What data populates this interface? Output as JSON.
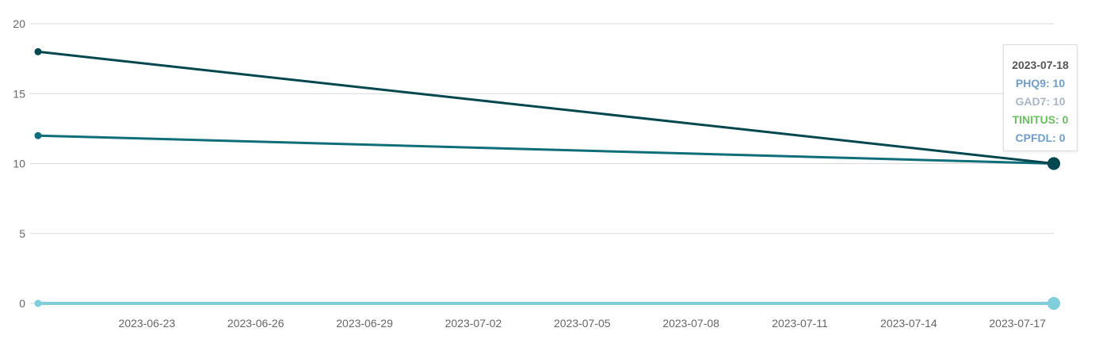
{
  "chart_data": {
    "type": "line",
    "title": "",
    "xlabel": "",
    "ylabel": "",
    "x_range": [
      "2023-06-20",
      "2023-07-18"
    ],
    "ylim": [
      0,
      20
    ],
    "yticks": [
      0,
      5,
      10,
      15,
      20
    ],
    "xticks": [
      "2023-06-23",
      "2023-06-26",
      "2023-06-29",
      "2023-07-02",
      "2023-07-05",
      "2023-07-08",
      "2023-07-11",
      "2023-07-14",
      "2023-07-17"
    ],
    "grid": "horizontal",
    "x": [
      "2023-06-20",
      "2023-07-18"
    ],
    "series": [
      {
        "name": "PHQ9",
        "color": "#0e6e7a",
        "values": [
          12,
          10
        ]
      },
      {
        "name": "GAD7",
        "color": "#00474f",
        "values": [
          18,
          10
        ]
      },
      {
        "name": "TINITUS",
        "color": "#80cedc",
        "values": [
          0,
          0
        ]
      },
      {
        "name": "CPFDL",
        "color": "#95d2df",
        "values": [
          0,
          0
        ]
      }
    ],
    "tooltip": {
      "date": "2023-07-18",
      "rows": [
        {
          "label": "PHQ9: 10",
          "color": "#6e9ec9"
        },
        {
          "label": "GAD7: 10",
          "color": "#a9b7c4"
        },
        {
          "label": "TINITUS: 0",
          "color": "#6abf5e"
        },
        {
          "label": "CPFDL: 0",
          "color": "#6e9ec9"
        }
      ]
    }
  }
}
